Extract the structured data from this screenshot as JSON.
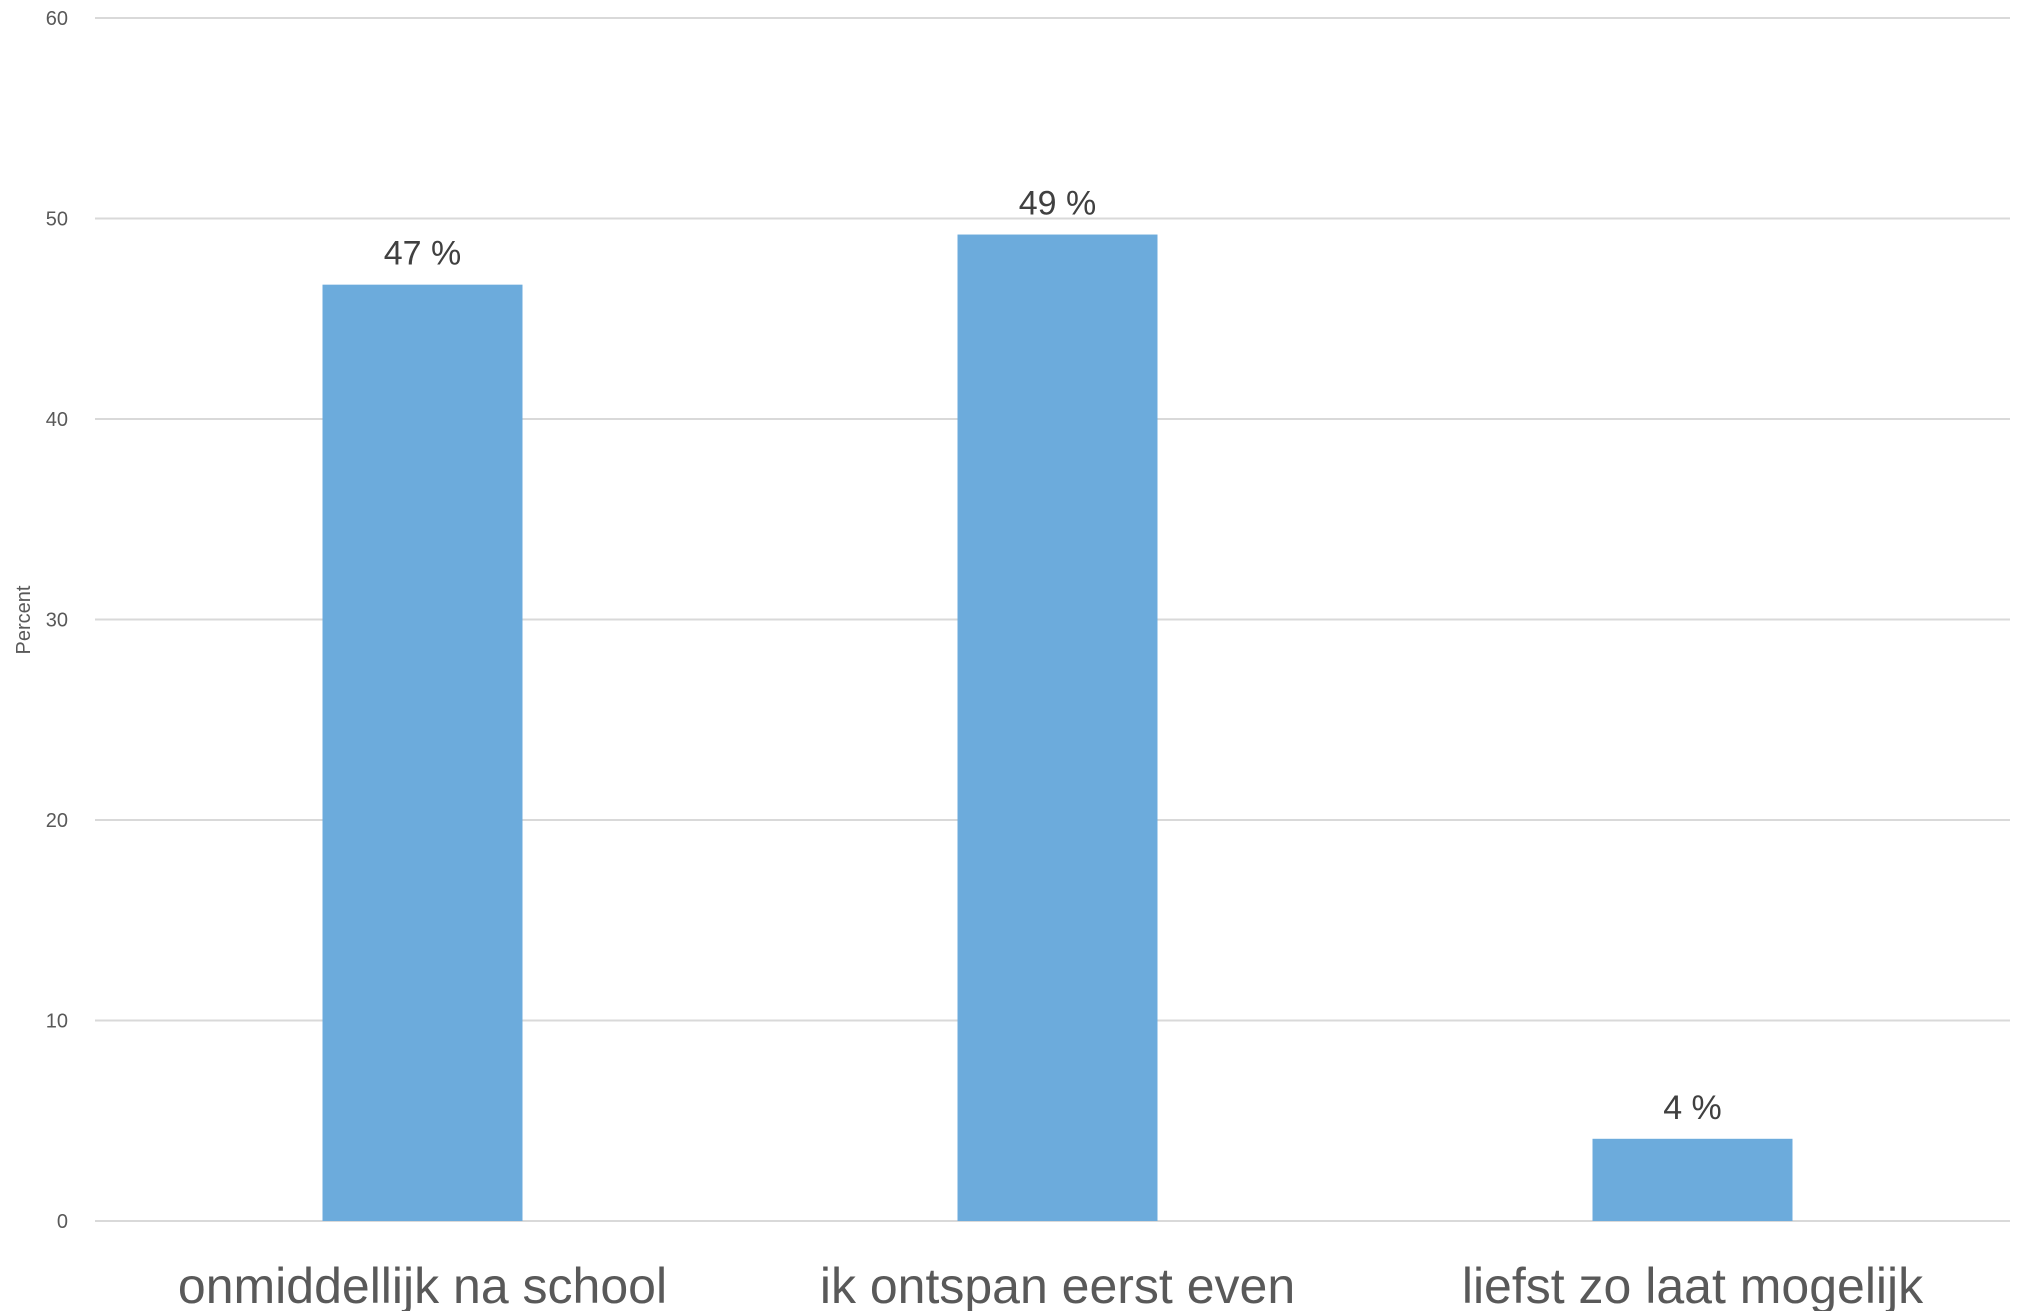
{
  "chart_data": {
    "type": "bar",
    "ylabel": "Percent",
    "ylim": [
      0,
      60
    ],
    "yticks": [
      0,
      10,
      20,
      30,
      40,
      50,
      60
    ],
    "grid": true,
    "categories": [
      "onmiddellijk na school",
      "ik ontspan eerst even",
      "liefst zo laat mogelijk"
    ],
    "values": [
      46.7,
      49.2,
      4.1
    ],
    "data_labels": [
      "47 %",
      "49 %",
      "4 %"
    ],
    "bar_color": "#6cabdc"
  }
}
